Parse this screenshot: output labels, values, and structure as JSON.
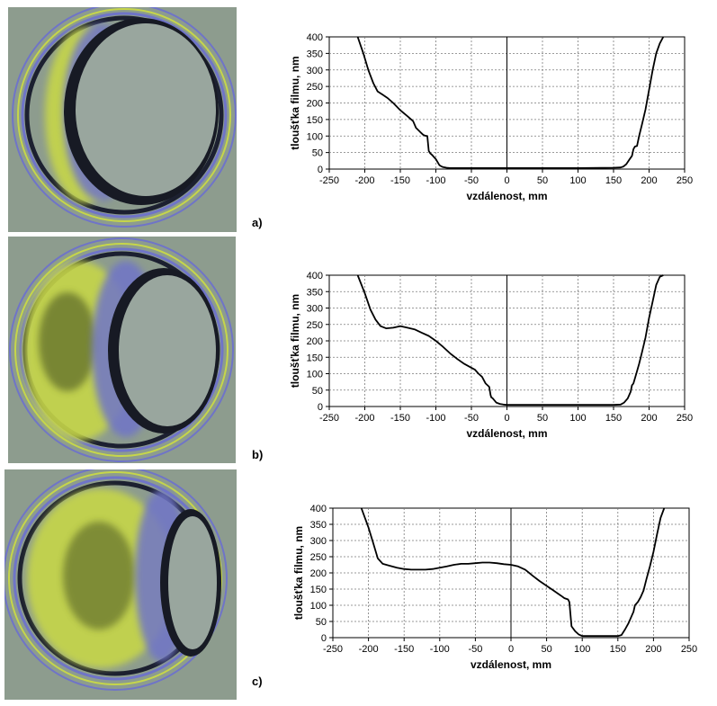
{
  "panel_labels": [
    "a)",
    "b)",
    "c)"
  ],
  "colors": {
    "interferogram_base": "#8d9c8e",
    "fringe_dark": "#171a24",
    "fringe_blue": "#6f74c8",
    "fringe_yellow": "#c6d64a",
    "line": "#000000"
  },
  "chart_data": [
    {
      "type": "line",
      "xlabel": "vzdálenost, mm",
      "ylabel": "tloušťka filmu, nm",
      "xlim": [
        -250,
        250
      ],
      "ylim": [
        0,
        400
      ],
      "xticks": [
        -250,
        -200,
        -150,
        -100,
        -50,
        0,
        50,
        100,
        150,
        200,
        250
      ],
      "yticks": [
        0,
        50,
        100,
        150,
        200,
        250,
        300,
        350,
        400
      ],
      "grid": true,
      "series": [
        {
          "x": [
            -210,
            -202,
            -195,
            -188,
            -182,
            -175,
            -168,
            -160,
            -150,
            -140,
            -132,
            -128,
            -122,
            -118,
            -115,
            -112,
            -110,
            -108,
            -105,
            -100,
            -95,
            -92,
            -90,
            -85,
            -80,
            -50,
            0,
            50,
            100,
            150,
            160,
            164,
            168,
            172,
            176,
            178,
            180,
            183,
            186,
            190,
            195,
            200,
            205,
            210,
            215,
            220
          ],
          "y": [
            400,
            350,
            300,
            260,
            235,
            225,
            215,
            200,
            178,
            160,
            145,
            125,
            112,
            104,
            101,
            100,
            55,
            48,
            42,
            30,
            12,
            8,
            6,
            4,
            3,
            3,
            3,
            3,
            3,
            4,
            5,
            8,
            15,
            28,
            40,
            60,
            68,
            70,
            100,
            135,
            180,
            240,
            300,
            350,
            380,
            400
          ]
        }
      ]
    },
    {
      "type": "line",
      "xlabel": "vzdálenost, mm",
      "ylabel": "tloušťka filmu, nm",
      "xlim": [
        -250,
        250
      ],
      "ylim": [
        0,
        400
      ],
      "xticks": [
        -250,
        -200,
        -150,
        -100,
        -50,
        0,
        50,
        100,
        150,
        200,
        250
      ],
      "yticks": [
        0,
        50,
        100,
        150,
        200,
        250,
        300,
        350,
        400
      ],
      "grid": true,
      "series": [
        {
          "x": [
            -210,
            -200,
            -192,
            -185,
            -178,
            -170,
            -160,
            -150,
            -140,
            -130,
            -120,
            -110,
            -100,
            -90,
            -80,
            -70,
            -60,
            -50,
            -45,
            -40,
            -35,
            -30,
            -25,
            -23,
            -22,
            -20,
            -15,
            -10,
            -5,
            0,
            50,
            100,
            150,
            160,
            165,
            170,
            174,
            176,
            178,
            182,
            186,
            190,
            195,
            200,
            205,
            210,
            215,
            220
          ],
          "y": [
            400,
            345,
            295,
            265,
            245,
            238,
            240,
            245,
            240,
            235,
            225,
            215,
            200,
            182,
            162,
            145,
            130,
            118,
            112,
            100,
            90,
            70,
            60,
            35,
            28,
            25,
            12,
            8,
            6,
            5,
            5,
            5,
            5,
            6,
            12,
            25,
            45,
            65,
            70,
            100,
            130,
            165,
            210,
            270,
            320,
            370,
            395,
            400
          ]
        }
      ]
    },
    {
      "type": "line",
      "xlabel": "vzdálenost, mm",
      "ylabel": "tloušťka filmu, nm",
      "xlim": [
        -250,
        250
      ],
      "ylim": [
        0,
        400
      ],
      "xticks": [
        -250,
        -200,
        -150,
        -100,
        -50,
        0,
        50,
        100,
        150,
        200,
        250
      ],
      "yticks": [
        0,
        50,
        100,
        150,
        200,
        250,
        300,
        350,
        400
      ],
      "grid": true,
      "series": [
        {
          "x": [
            -210,
            -200,
            -193,
            -187,
            -180,
            -170,
            -160,
            -150,
            -140,
            -130,
            -120,
            -110,
            -100,
            -90,
            -80,
            -70,
            -60,
            -50,
            -40,
            -30,
            -20,
            -10,
            0,
            10,
            20,
            30,
            40,
            50,
            60,
            70,
            75,
            80,
            82,
            85,
            90,
            95,
            100,
            110,
            120,
            130,
            140,
            150,
            155,
            160,
            165,
            170,
            172,
            174,
            178,
            182,
            186,
            190,
            195,
            200,
            205,
            210,
            215
          ],
          "y": [
            400,
            340,
            290,
            245,
            228,
            222,
            216,
            212,
            210,
            210,
            210,
            212,
            216,
            220,
            225,
            228,
            228,
            230,
            232,
            232,
            230,
            227,
            225,
            220,
            210,
            192,
            175,
            160,
            145,
            130,
            122,
            118,
            110,
            35,
            20,
            10,
            5,
            5,
            5,
            5,
            5,
            5,
            8,
            25,
            45,
            70,
            80,
            100,
            110,
            125,
            145,
            180,
            220,
            265,
            320,
            370,
            400
          ]
        }
      ]
    }
  ]
}
